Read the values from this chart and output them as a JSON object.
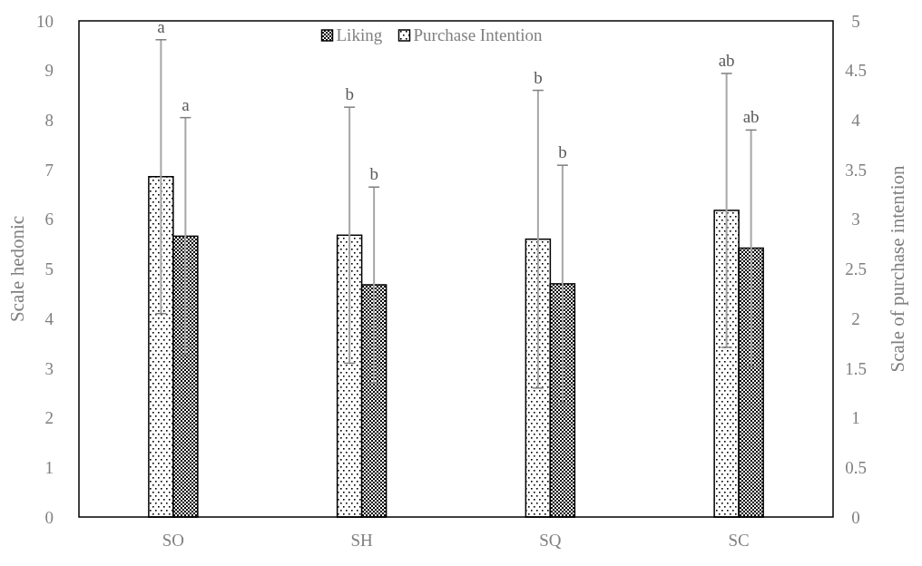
{
  "chart_data": {
    "type": "bar",
    "categories": [
      "SO",
      "SH",
      "SQ",
      "SC"
    ],
    "ylabel": "Scale hedonic",
    "y2label": "Scale of purchase intention",
    "ylim": [
      0,
      10
    ],
    "yticks": [
      0,
      1,
      2,
      3,
      4,
      5,
      6,
      7,
      8,
      9,
      10
    ],
    "y2lim": [
      0,
      5
    ],
    "y2ticks": [
      0,
      {
        "value": 0.5,
        "label": "0.5"
      },
      1,
      {
        "value": 1.5,
        "label": "1.5"
      },
      2,
      {
        "value": 2.5,
        "label": "2.5"
      },
      3,
      {
        "value": 3.5,
        "label": "3.5"
      },
      4,
      {
        "value": 4.5,
        "label": "4.5"
      },
      5
    ],
    "series": [
      {
        "name": "Purchase Intention",
        "color": "#000000",
        "axis": "y2",
        "values": [
          3.43,
          2.84,
          2.8,
          3.09
        ],
        "errors": [
          1.38,
          1.29,
          1.5,
          1.38
        ]
      },
      {
        "name": "Liking",
        "color": "#000000",
        "axis": "y",
        "values": [
          5.66,
          4.68,
          4.7,
          5.42
        ],
        "errors": [
          2.39,
          1.97,
          2.39,
          2.38
        ]
      }
    ],
    "annotations": [
      "a",
      "a",
      "b",
      "b",
      "b",
      "b",
      "ab",
      "ab"
    ],
    "legend": "top",
    "grid": false
  }
}
